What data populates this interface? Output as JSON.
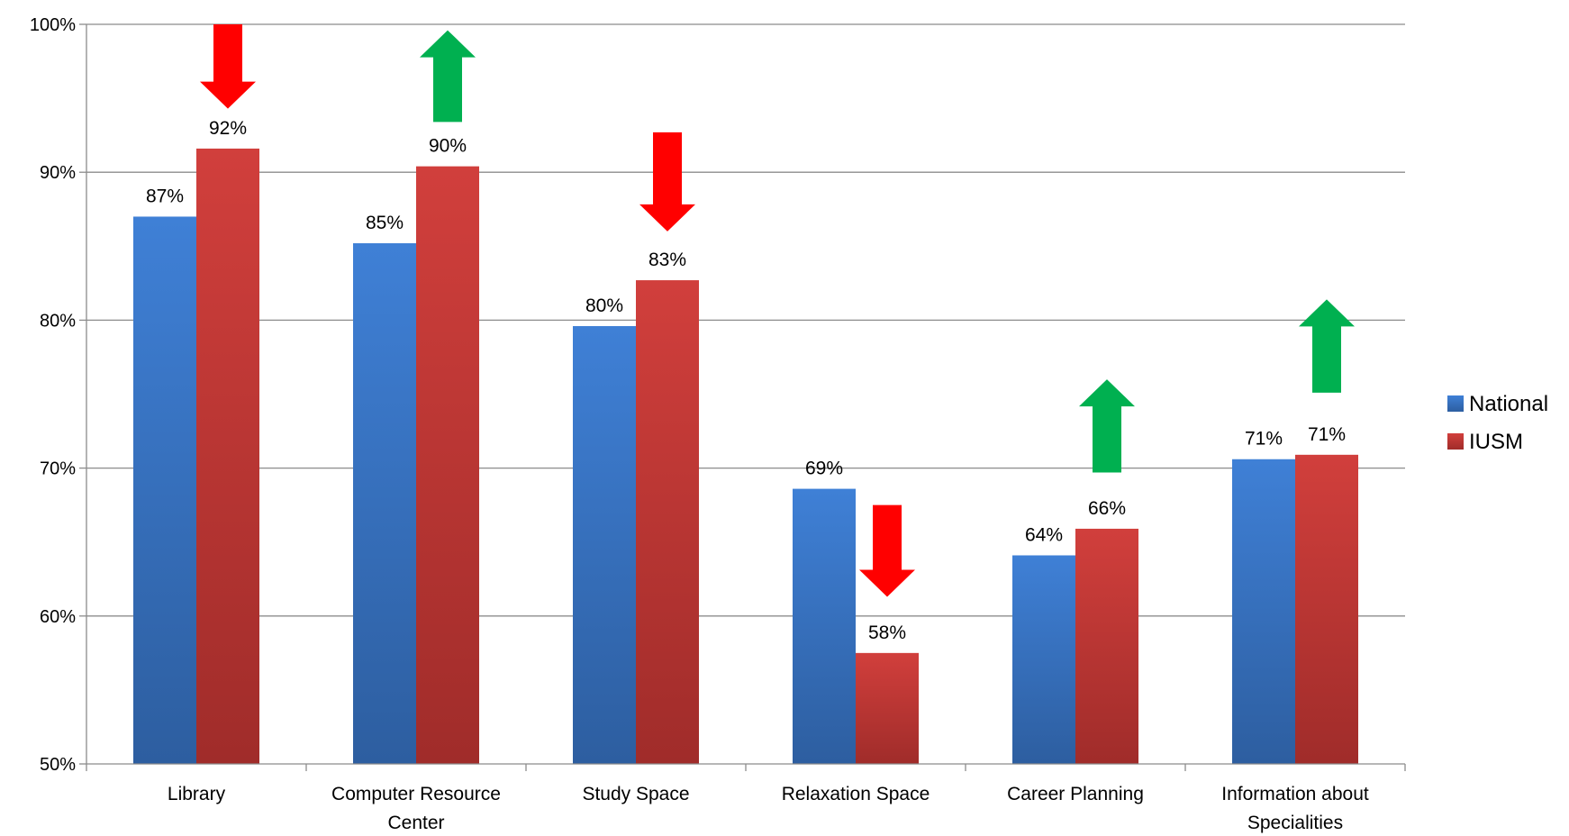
{
  "chart_data": {
    "type": "bar",
    "title": "",
    "xlabel": "",
    "ylabel": "",
    "ylim": [
      50,
      100
    ],
    "y_ticks": [
      50,
      60,
      70,
      80,
      90,
      100
    ],
    "y_tick_suffix": "%",
    "grid": true,
    "legend_position": "right",
    "categories": [
      [
        "Library"
      ],
      [
        "Computer Resource",
        "Center"
      ],
      [
        "Study Space"
      ],
      [
        "Relaxation Space"
      ],
      [
        "Career Planning"
      ],
      [
        "Information about",
        "Specialities"
      ]
    ],
    "series": [
      {
        "name": "National",
        "color": "#3b78c8",
        "values": [
          87,
          85.2,
          79.6,
          68.6,
          64.1,
          70.6
        ],
        "labels": [
          "87%",
          "85%",
          "80%",
          "69%",
          "64%",
          "71%"
        ]
      },
      {
        "name": "IUSM",
        "color": "#c83a37",
        "values": [
          91.6,
          90.4,
          82.7,
          57.5,
          65.9,
          70.9
        ],
        "labels": [
          "92%",
          "90%",
          "83%",
          "58%",
          "66%",
          "71%"
        ]
      }
    ],
    "annotations": [
      {
        "category_index": 0,
        "direction": "down",
        "color": "#ff0000",
        "top": 100.0,
        "bottom": 94.3
      },
      {
        "category_index": 1,
        "direction": "up",
        "color": "#00b050",
        "top": 99.6,
        "bottom": 93.4
      },
      {
        "category_index": 2,
        "direction": "down",
        "color": "#ff0000",
        "top": 92.7,
        "bottom": 86.0
      },
      {
        "category_index": 3,
        "direction": "down",
        "color": "#ff0000",
        "top": 67.5,
        "bottom": 61.3
      },
      {
        "category_index": 4,
        "direction": "up",
        "color": "#00b050",
        "top": 76.0,
        "bottom": 69.7
      },
      {
        "category_index": 5,
        "direction": "up",
        "color": "#00b050",
        "top": 81.4,
        "bottom": 75.1
      }
    ]
  }
}
